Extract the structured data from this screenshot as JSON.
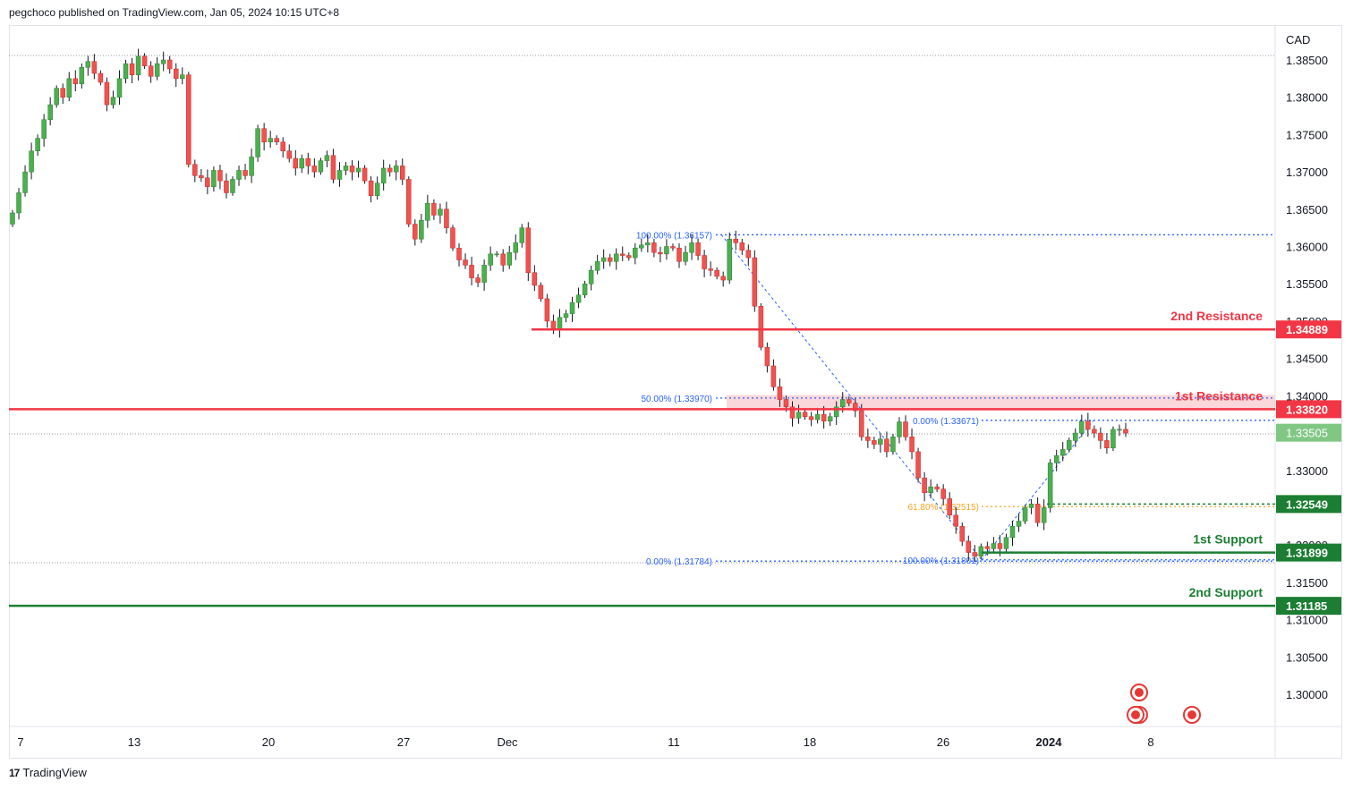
{
  "header": {
    "published": "pegchoco published on TradingView.com, Jan 05, 2024 10:15 UTC+8"
  },
  "footer": {
    "logo_text": "TradingView"
  },
  "chart_data": {
    "type": "candlestick",
    "symbol_currency": "CAD",
    "ylim": [
      1.2965,
      1.3885
    ],
    "y_ticks": [
      "1.38500",
      "1.38000",
      "1.37500",
      "1.37000",
      "1.36500",
      "1.36000",
      "1.35500",
      "1.35000",
      "1.34500",
      "1.34000",
      "1.33500",
      "1.33000",
      "1.32500",
      "1.32000",
      "1.31500",
      "1.31000",
      "1.30500",
      "1.30000"
    ],
    "x_ticks": [
      "7",
      "13",
      "20",
      "27",
      "Dec",
      "11",
      "18",
      "26",
      "2024",
      "8"
    ],
    "last_price": "1.33505",
    "levels": [
      {
        "label": "2nd Resistance",
        "value": 1.34889,
        "value_text": "1.34889",
        "color": "#f23645"
      },
      {
        "label": "1st Resistance",
        "value": 1.3382,
        "value_text": "1.33820",
        "color": "#f23645"
      },
      {
        "label": "",
        "value": 1.32549,
        "value_text": "1.32549",
        "color": "#1b7e32"
      },
      {
        "label": "1st Support",
        "value": 1.31899,
        "value_text": "1.31899",
        "color": "#1b7e32"
      },
      {
        "label": "2nd Support",
        "value": 1.31185,
        "value_text": "1.31185",
        "color": "#1b7e32"
      }
    ],
    "fib_labels": [
      {
        "text": "100.00% (1.36157)",
        "value": 1.36157
      },
      {
        "text": "50.00% (1.33970)",
        "value": 1.3397
      },
      {
        "text": "0.00% (1.31784)",
        "value": 1.31784
      },
      {
        "text": "0.00% (1.33671)",
        "value": 1.33671
      },
      {
        "text": "61.80% (1.32515)",
        "value": 1.32515
      },
      {
        "text": "100.00% (1.31801)",
        "value": 1.31801
      }
    ],
    "resistance_zone": [
      1.3382,
      1.3401
    ],
    "closes": [
      1.3645,
      1.3672,
      1.37,
      1.3728,
      1.3745,
      1.377,
      1.379,
      1.3812,
      1.38,
      1.3825,
      1.3818,
      1.384,
      1.3848,
      1.3832,
      1.382,
      1.379,
      1.38,
      1.3825,
      1.3845,
      1.383,
      1.3855,
      1.3842,
      1.3828,
      1.3845,
      1.385,
      1.3838,
      1.3825,
      1.383,
      1.371,
      1.3695,
      1.3692,
      1.368,
      1.3702,
      1.3688,
      1.3672,
      1.369,
      1.3702,
      1.3695,
      1.372,
      1.3758,
      1.374,
      1.3745,
      1.374,
      1.3728,
      1.3718,
      1.3705,
      1.3718,
      1.3708,
      1.37,
      1.3715,
      1.3722,
      1.369,
      1.3702,
      1.3708,
      1.37,
      1.3705,
      1.3688,
      1.3668,
      1.3685,
      1.3705,
      1.37,
      1.3708,
      1.369,
      1.363,
      1.361,
      1.3635,
      1.3658,
      1.3642,
      1.365,
      1.3625,
      1.3598,
      1.3582,
      1.3575,
      1.3558,
      1.3552,
      1.3575,
      1.359,
      1.359,
      1.3575,
      1.3592,
      1.3605,
      1.3625,
      1.3565,
      1.3548,
      1.353,
      1.35,
      1.3488,
      1.3505,
      1.351,
      1.3525,
      1.3535,
      1.355,
      1.3568,
      1.358,
      1.3585,
      1.358,
      1.359,
      1.3588,
      1.3585,
      1.3598,
      1.3602,
      1.3605,
      1.3592,
      1.359,
      1.36,
      1.3598,
      1.358,
      1.3592,
      1.3605,
      1.3588,
      1.357,
      1.3568,
      1.356,
      1.3555,
      1.361,
      1.3605,
      1.3595,
      1.3585,
      1.352,
      1.3465,
      1.344,
      1.3412,
      1.3395,
      1.3385,
      1.337,
      1.3378,
      1.3372,
      1.3368,
      1.3375,
      1.3366,
      1.3372,
      1.3385,
      1.3395,
      1.339,
      1.338,
      1.3345,
      1.334,
      1.3335,
      1.3342,
      1.3325,
      1.3345,
      1.3365,
      1.3345,
      1.3325,
      1.329,
      1.327,
      1.3278,
      1.3275,
      1.3262,
      1.324,
      1.3225,
      1.3205,
      1.319,
      1.3185,
      1.3198,
      1.3195,
      1.3202,
      1.3195,
      1.321,
      1.3225,
      1.3232,
      1.325,
      1.3255,
      1.323,
      1.325,
      1.331,
      1.332,
      1.3328,
      1.334,
      1.335,
      1.3366,
      1.3355,
      1.335,
      1.334,
      1.333,
      1.3355,
      1.3355,
      1.335
    ]
  }
}
